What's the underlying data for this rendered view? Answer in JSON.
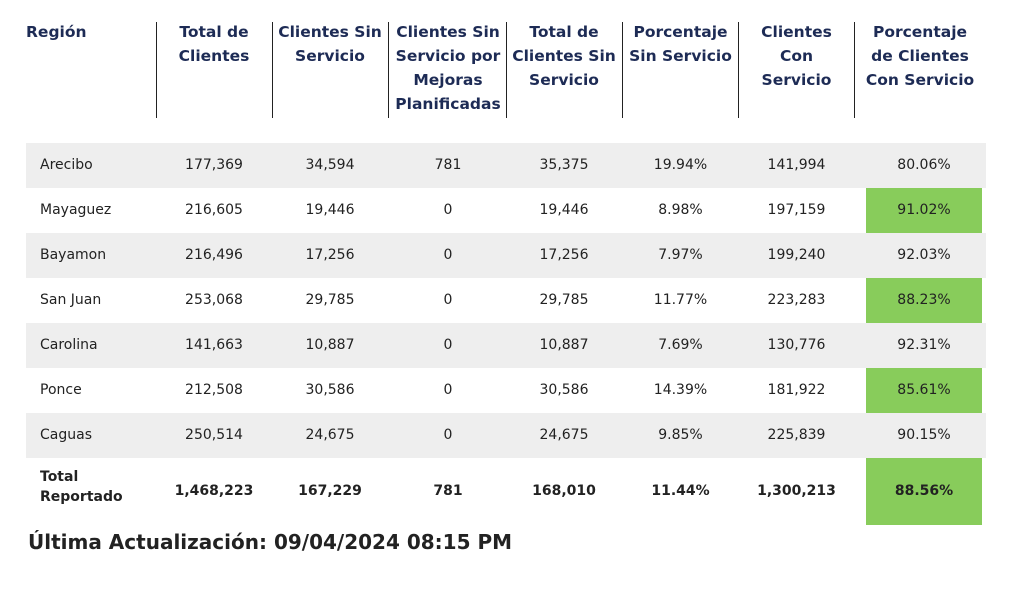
{
  "headers": [
    "Región",
    "Total de\nClientes",
    "Clientes Sin\nServicio",
    "Clientes Sin\nServicio por\nMejoras\nPlanificadas",
    "Total de\nClientes Sin\nServicio",
    "Porcentaje\nSin Servicio",
    "Clientes\nCon\nServicio",
    "Porcentaje\nde Clientes\nCon Servicio"
  ],
  "rows": [
    [
      "Arecibo",
      "177,369",
      "34,594",
      "781",
      "35,375",
      "19.94%",
      "141,994",
      "80.06%"
    ],
    [
      "Mayaguez",
      "216,605",
      "19,446",
      "0",
      "19,446",
      "8.98%",
      "197,159",
      "91.02%"
    ],
    [
      "Bayamon",
      "216,496",
      "17,256",
      "0",
      "17,256",
      "7.97%",
      "199,240",
      "92.03%"
    ],
    [
      "San Juan",
      "253,068",
      "29,785",
      "0",
      "29,785",
      "11.77%",
      "223,283",
      "88.23%"
    ],
    [
      "Carolina",
      "141,663",
      "10,887",
      "0",
      "10,887",
      "7.69%",
      "130,776",
      "92.31%"
    ],
    [
      "Ponce",
      "212,508",
      "30,586",
      "0",
      "30,586",
      "14.39%",
      "181,922",
      "85.61%"
    ],
    [
      "Caguas",
      "250,514",
      "24,675",
      "0",
      "24,675",
      "9.85%",
      "225,839",
      "90.15%"
    ]
  ],
  "total": [
    "Total\nReportado",
    "1,468,223",
    "167,229",
    "781",
    "168,010",
    "11.44%",
    "1,300,213",
    "88.56%"
  ],
  "updated": "Última Actualización: 09/04/2024 08:15 PM",
  "colors": {
    "header_text": "#1d2b55",
    "shaded_row": "#eeeeee",
    "highlight": "#88cc5b"
  }
}
